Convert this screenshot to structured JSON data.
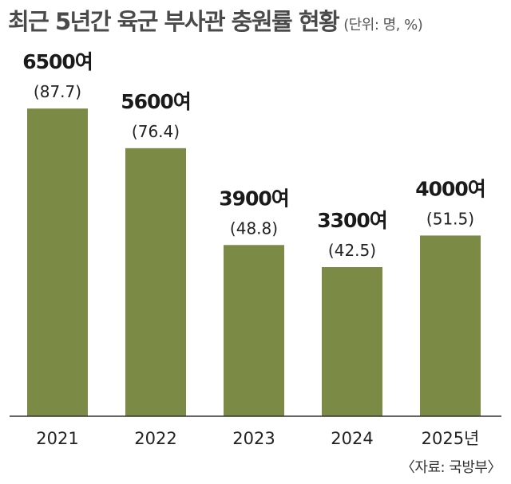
{
  "chart_data": {
    "type": "bar",
    "title": "최근 5년간 육군 부사관 충원률 현황",
    "unit_note": "(단위: 명, %)",
    "categories": [
      "2021",
      "2022",
      "2023",
      "2024",
      "2025년"
    ],
    "values": [
      87.7,
      76.4,
      48.8,
      42.5,
      51.5
    ],
    "count_labels": [
      "6500여",
      "5600여",
      "3900여",
      "3300여",
      "4000여"
    ],
    "rate_labels": [
      "(87.7)",
      "(76.4)",
      "(48.8)",
      "(42.5)",
      "(51.5)"
    ],
    "ylim": [
      0,
      100
    ],
    "grid": false,
    "bar_color": "#7b8b45",
    "source": "〈자료: 국방부〉"
  }
}
